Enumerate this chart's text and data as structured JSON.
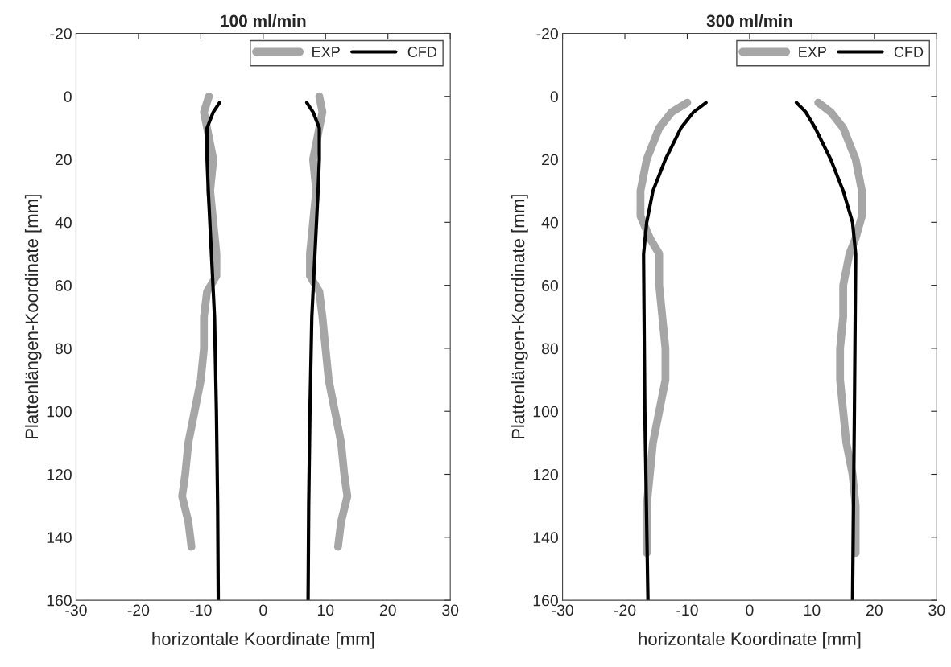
{
  "chart_data": [
    {
      "type": "line",
      "title": "100 ml/min",
      "xlabel": "horizontale Koordinate [mm]",
      "ylabel": "Plattenlängen-Koordinate [mm]",
      "xlim": [
        -30,
        30
      ],
      "xticks": [
        -30,
        -20,
        -10,
        0,
        10,
        20,
        30
      ],
      "ylim": [
        160,
        -20
      ],
      "yticks": [
        -20,
        0,
        20,
        40,
        60,
        80,
        100,
        120,
        140,
        160
      ],
      "grid": false,
      "legend": "top right",
      "series": [
        {
          "name": "EXP",
          "color": "#a6a6a6",
          "x": [
            -8.7,
            -9.5,
            -9,
            -8,
            -8.5,
            -8,
            -7.5,
            -7.5,
            -9,
            -9.5,
            -9.5,
            -10,
            -11,
            -12,
            -12.5,
            -13,
            -12,
            -11.5
          ],
          "values": [
            0,
            5,
            10,
            20,
            30,
            40,
            50,
            57,
            62,
            70,
            80,
            90,
            100,
            110,
            120,
            127,
            135,
            143
          ]
        },
        {
          "color": "#a6a6a6",
          "x": [
            9,
            9.5,
            9,
            8,
            8.5,
            8,
            7.5,
            7.5,
            9,
            9.5,
            10,
            10.5,
            11.5,
            12.5,
            13,
            13.5,
            12.5,
            12
          ],
          "values": [
            0,
            5,
            10,
            20,
            30,
            40,
            50,
            57,
            62,
            70,
            80,
            90,
            100,
            110,
            120,
            127,
            135,
            143
          ]
        },
        {
          "name": "CFD",
          "color": "#000000",
          "x": [
            -7,
            -8,
            -9,
            -9,
            -8.8,
            -8.3,
            -7.8,
            -7.5,
            -7.3,
            -7.2
          ],
          "values": [
            2,
            5,
            10,
            20,
            30,
            50,
            70,
            100,
            130,
            160
          ]
        },
        {
          "color": "#000000",
          "x": [
            7,
            8,
            9,
            9,
            8.8,
            8.3,
            7.8,
            7.5,
            7.3,
            7.2
          ],
          "values": [
            2,
            5,
            10,
            20,
            30,
            50,
            70,
            100,
            130,
            160
          ]
        }
      ]
    },
    {
      "type": "line",
      "title": "300 ml/min",
      "xlabel": "horizontale Koordinate [mm]",
      "ylabel": "Plattenlängen-Koordinate [mm]",
      "xlim": [
        -30,
        30
      ],
      "xticks": [
        -30,
        -20,
        -10,
        0,
        10,
        20,
        30
      ],
      "ylim": [
        160,
        -20
      ],
      "yticks": [
        -20,
        0,
        20,
        40,
        60,
        80,
        100,
        120,
        140,
        160
      ],
      "grid": false,
      "legend": "top right",
      "series": [
        {
          "name": "EXP",
          "color": "#a6a6a6",
          "x": [
            -10,
            -12.5,
            -14.5,
            -16.5,
            -17.5,
            -17.5,
            -16,
            -14.5,
            -14.5,
            -14,
            -13.5,
            -13.5,
            -14.5,
            -15.5,
            -16,
            -16.5,
            -16.5
          ],
          "values": [
            2,
            5,
            10,
            20,
            30,
            38,
            45,
            50,
            60,
            70,
            80,
            90,
            100,
            110,
            120,
            130,
            145
          ]
        },
        {
          "color": "#a6a6a6",
          "x": [
            11,
            13,
            15,
            17,
            18,
            18,
            17,
            16,
            15,
            15,
            14.5,
            14.5,
            15,
            15.5,
            16.5,
            17,
            17
          ],
          "values": [
            2,
            5,
            10,
            20,
            30,
            38,
            45,
            50,
            60,
            70,
            80,
            90,
            100,
            110,
            120,
            130,
            145
          ]
        },
        {
          "name": "CFD",
          "color": "#000000",
          "x": [
            -7,
            -9,
            -11,
            -13.5,
            -15.5,
            -16.5,
            -17,
            -17,
            -16.8,
            -16.3
          ],
          "values": [
            2,
            5,
            10,
            20,
            30,
            40,
            50,
            52,
            100,
            160
          ]
        },
        {
          "color": "#000000",
          "x": [
            7.5,
            9,
            10.5,
            13,
            15,
            16.5,
            17,
            17,
            16.8,
            16.5
          ],
          "values": [
            2,
            5,
            10,
            20,
            30,
            40,
            50,
            52,
            100,
            160
          ]
        }
      ]
    }
  ]
}
